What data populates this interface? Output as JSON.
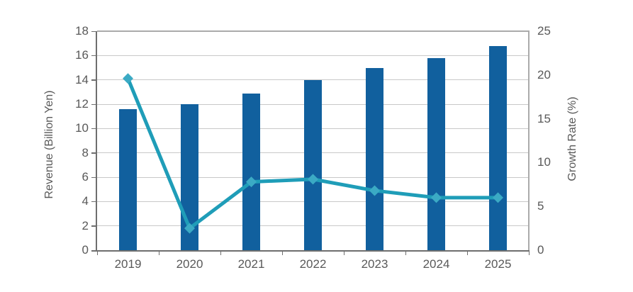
{
  "chart_data": {
    "type": "combo",
    "title": "",
    "categories": [
      "2019",
      "2020",
      "2021",
      "2022",
      "2023",
      "2024",
      "2025"
    ],
    "series": [
      {
        "name": "Revenue",
        "type": "bar",
        "axis": "left",
        "values": [
          11.6,
          12.0,
          12.9,
          14.0,
          15.0,
          15.8,
          16.8
        ],
        "color": "#11609E"
      },
      {
        "name": "Growth Rate",
        "type": "line",
        "axis": "right",
        "values": [
          19.6,
          2.5,
          7.8,
          8.1,
          6.8,
          6.0,
          6.0
        ],
        "color": "#1F9DB8",
        "marker": "diamond",
        "marker_color": "#3BAAC4"
      }
    ],
    "left_axis": {
      "label": "Revenue (Billion Yen)",
      "min": 0,
      "max": 18,
      "step": 2
    },
    "right_axis": {
      "label": "Growth Rate (%)",
      "min": 0,
      "max": 25,
      "step": 5
    },
    "grid": true,
    "legend": "none",
    "colors": {
      "grid": "#C8C8C8",
      "axis_line": "#6E6E6E",
      "border": "#ABABAB",
      "text": "#595959",
      "background": "#FFFFFF"
    }
  }
}
